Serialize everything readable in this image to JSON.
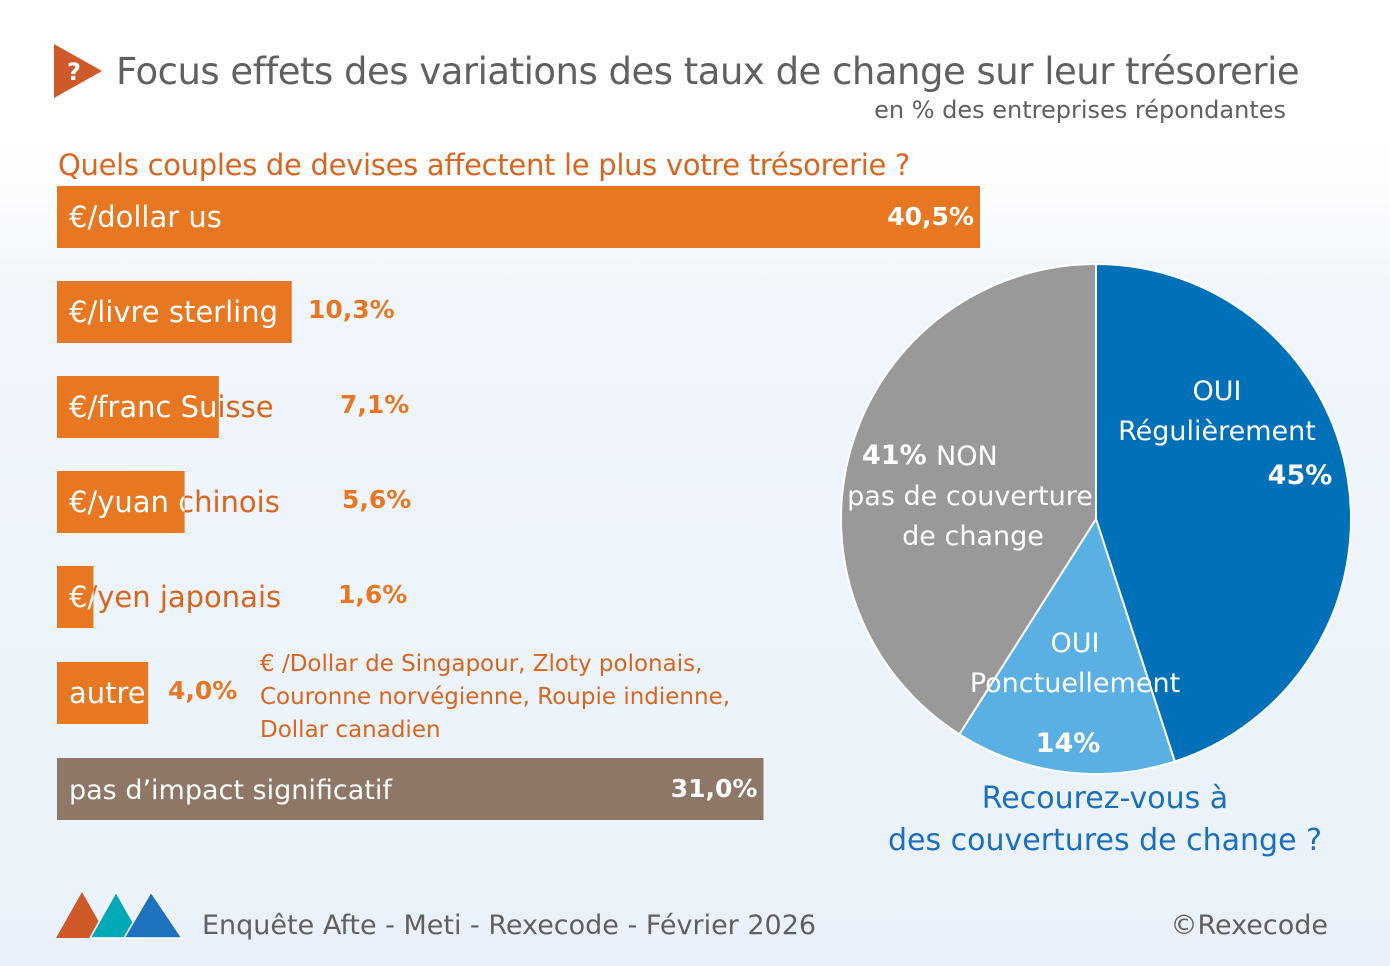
{
  "header": {
    "title": "Focus effets des variations des taux de change sur leur trésorerie",
    "subtitle": "en % des entreprises répondantes",
    "icon": "question-mark-triangle-icon"
  },
  "chart_data": [
    {
      "type": "bar",
      "orientation": "horizontal",
      "title": "Quels couples de devises affectent le plus votre trésorerie ?",
      "categories": [
        "€/dollar us",
        "€/livre sterling",
        "€/franc Suisse",
        "€/yuan chinois",
        "€/yen japonais",
        "autre",
        "pas d’impact significatif"
      ],
      "values": [
        40.5,
        10.3,
        7.1,
        5.6,
        1.6,
        4.0,
        31.0
      ],
      "value_labels": [
        "40,5%",
        "10,3%",
        "7,1%",
        "5,6%",
        "1,6%",
        "4,0%",
        "31,0%"
      ],
      "colors": [
        "#e87722",
        "#e87722",
        "#e87722",
        "#e87722",
        "#e87722",
        "#e87722",
        "#8f7767"
      ],
      "annotation": [
        "€ /Dollar de Singapour, Zloty polonais,",
        "Couronne norvégienne, Roupie indienne,",
        "Dollar canadien"
      ],
      "grid": false
    },
    {
      "type": "pie",
      "title": "Recourez-vous à des couvertures de change ?",
      "title_lines": [
        "Recourez-vous à",
        "des couvertures de change ?"
      ],
      "slices": [
        {
          "label_lines": [
            "OUI",
            "Régulièrement"
          ],
          "value": 45,
          "value_label": "45%",
          "color": "#0070b8"
        },
        {
          "label_lines": [
            "OUI",
            "Ponctuellement"
          ],
          "value": 14,
          "value_label": "14%",
          "color": "#5aafe3"
        },
        {
          "label_lines": [
            "NON",
            "pas de couverture",
            "de change"
          ],
          "value": 41,
          "value_label": "41%",
          "color": "#999999"
        }
      ]
    }
  ],
  "footer": {
    "source": "Enquête Afte - Meti - Rexecode  - Février 2026",
    "copyright": "©Rexecode",
    "logo": "three-mountains-logo"
  }
}
